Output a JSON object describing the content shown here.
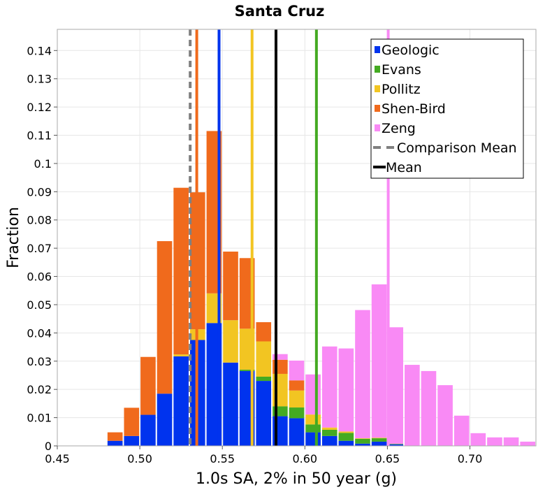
{
  "chart_data": {
    "type": "bar",
    "stacked": true,
    "title": "Santa Cruz",
    "xlabel": "1.0s SA, 2% in 50 year (g)",
    "ylabel": "Fraction",
    "xlim": [
      0.45,
      0.74
    ],
    "ylim": [
      0,
      0.1475
    ],
    "grid": true,
    "legend_position": "top-right",
    "x_ticks": [
      0.45,
      0.5,
      0.55,
      0.6,
      0.65,
      0.7
    ],
    "x_tick_labels": [
      "0.45",
      "0.50",
      "0.55",
      "0.60",
      "0.65",
      "0.70"
    ],
    "y_ticks": [
      0,
      0.01,
      0.02,
      0.03,
      0.04,
      0.05,
      0.06,
      0.07,
      0.08,
      0.09,
      0.1,
      0.11,
      0.12,
      0.13,
      0.14
    ],
    "y_tick_labels": [
      "0",
      "0.01",
      "0.02",
      "0.03",
      "0.04",
      "0.05",
      "0.06",
      "0.07",
      "0.08",
      "0.09",
      "0.1",
      "0.11",
      "0.12",
      "0.13",
      "0.14"
    ],
    "bin_width": 0.01,
    "bin_centers": [
      0.485,
      0.495,
      0.505,
      0.515,
      0.525,
      0.535,
      0.545,
      0.555,
      0.565,
      0.575,
      0.585,
      0.595,
      0.605,
      0.615,
      0.625,
      0.635,
      0.645,
      0.655,
      0.665,
      0.675,
      0.685,
      0.695,
      0.705,
      0.715,
      0.725,
      0.735
    ],
    "series": [
      {
        "name": "Geologic",
        "color": "#0033ee",
        "values": [
          0.0018,
          0.0035,
          0.011,
          0.0185,
          0.0317,
          0.0375,
          0.0435,
          0.0295,
          0.0265,
          0.023,
          0.0105,
          0.0098,
          0.0048,
          0.0035,
          0.0018,
          0.0008,
          0.0015,
          0.0005,
          0,
          0,
          0,
          0,
          0,
          0,
          0,
          0
        ]
      },
      {
        "name": "Evans",
        "color": "#44aa22",
        "values": [
          0,
          0,
          0,
          0,
          0,
          0,
          0,
          0,
          0.0005,
          0.0015,
          0.0035,
          0.0038,
          0.0028,
          0.0022,
          0.0028,
          0.0017,
          0.0012,
          0.0002,
          0,
          0,
          0,
          0,
          0,
          0,
          0,
          0
        ]
      },
      {
        "name": "Pollitz",
        "color": "#f2c522",
        "values": [
          0,
          0,
          0,
          0,
          0.0007,
          0.0038,
          0.0105,
          0.015,
          0.0145,
          0.0125,
          0.0115,
          0.006,
          0.0035,
          0.0008,
          0.0005,
          0.0002,
          0.0002,
          0,
          0,
          0,
          0,
          0,
          0,
          0,
          0,
          0
        ]
      },
      {
        "name": "Shen-Bird",
        "color": "#f06a1c",
        "values": [
          0.003,
          0.01,
          0.0205,
          0.054,
          0.059,
          0.0485,
          0.0575,
          0.0243,
          0.025,
          0.0068,
          0.005,
          0.0036,
          0,
          0,
          0,
          0,
          0,
          0,
          0,
          0,
          0,
          0,
          0,
          0,
          0,
          0
        ]
      },
      {
        "name": "Zeng",
        "color": "#f98af5",
        "values": [
          0,
          0,
          0,
          0,
          0,
          0,
          0,
          0,
          0,
          0,
          0.002,
          0.007,
          0.0142,
          0.0287,
          0.0294,
          0.0454,
          0.0543,
          0.0413,
          0.0287,
          0.0265,
          0.0215,
          0.0107,
          0.0045,
          0.003,
          0.003,
          0.0015
        ]
      }
    ],
    "vertical_lines": [
      {
        "name": "Geologic",
        "x": 0.548,
        "color": "#0033ee",
        "style": "solid"
      },
      {
        "name": "Evans",
        "x": 0.607,
        "color": "#44aa22",
        "style": "solid"
      },
      {
        "name": "Pollitz",
        "x": 0.568,
        "color": "#f2c522",
        "style": "solid"
      },
      {
        "name": "Shen-Bird",
        "x": 0.5345,
        "color": "#f06a1c",
        "style": "solid"
      },
      {
        "name": "Zeng",
        "x": 0.6505,
        "color": "#f98af5",
        "style": "solid"
      },
      {
        "name": "Comparison Mean",
        "x": 0.5305,
        "color": "#808080",
        "style": "dashed"
      },
      {
        "name": "Mean",
        "x": 0.5825,
        "color": "#000000",
        "style": "solid"
      }
    ],
    "legend": [
      {
        "label": "Geologic",
        "color": "#0033ee",
        "kind": "box"
      },
      {
        "label": "Evans",
        "color": "#44aa22",
        "kind": "box"
      },
      {
        "label": "Pollitz",
        "color": "#f2c522",
        "kind": "box"
      },
      {
        "label": "Shen-Bird",
        "color": "#f06a1c",
        "kind": "box"
      },
      {
        "label": "Zeng",
        "color": "#f98af5",
        "kind": "box"
      },
      {
        "label": "Comparison Mean",
        "color": "#808080",
        "kind": "dashed"
      },
      {
        "label": "Mean",
        "color": "#000000",
        "kind": "line"
      }
    ]
  }
}
